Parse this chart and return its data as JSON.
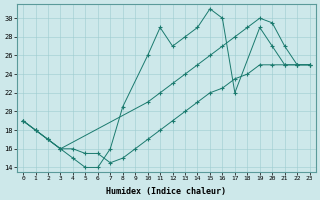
{
  "xlabel": "Humidex (Indice chaleur)",
  "xlim": [
    -0.5,
    23.5
  ],
  "ylim": [
    13.5,
    31.5
  ],
  "xticks": [
    0,
    1,
    2,
    3,
    4,
    5,
    6,
    7,
    8,
    9,
    10,
    11,
    12,
    13,
    14,
    15,
    16,
    17,
    18,
    19,
    20,
    21,
    22,
    23
  ],
  "yticks": [
    14,
    16,
    18,
    20,
    22,
    24,
    26,
    28,
    30
  ],
  "bg_color": "#cde8ea",
  "line_color": "#1a7a6e",
  "line1_x": [
    0,
    1,
    2,
    3,
    4,
    5,
    6,
    7,
    8,
    10,
    11,
    12,
    13,
    14,
    15,
    16,
    17,
    19,
    20,
    21,
    22,
    23
  ],
  "line1_y": [
    19,
    18,
    17,
    16,
    15,
    14,
    14,
    16,
    20.5,
    26,
    29,
    27,
    28,
    29,
    31,
    30,
    22,
    29,
    27,
    25,
    25,
    25
  ],
  "line2_x": [
    0,
    1,
    2,
    3,
    10,
    11,
    12,
    13,
    14,
    15,
    16,
    17,
    18,
    19,
    20,
    21,
    22,
    23
  ],
  "line2_y": [
    19,
    18,
    17,
    16,
    21,
    22,
    23,
    24,
    25,
    26,
    27,
    28,
    29,
    30,
    29.5,
    27,
    25,
    25
  ],
  "line3_x": [
    0,
    1,
    2,
    3,
    4,
    5,
    6,
    7,
    8,
    9,
    10,
    11,
    12,
    13,
    14,
    15,
    16,
    17,
    18,
    19,
    20,
    21,
    22,
    23
  ],
  "line3_y": [
    19,
    18,
    17,
    16,
    16,
    15.5,
    15.5,
    14.5,
    15,
    16,
    17,
    18,
    19,
    20,
    21,
    22,
    22.5,
    23.5,
    24,
    25,
    25,
    25,
    25,
    25
  ]
}
